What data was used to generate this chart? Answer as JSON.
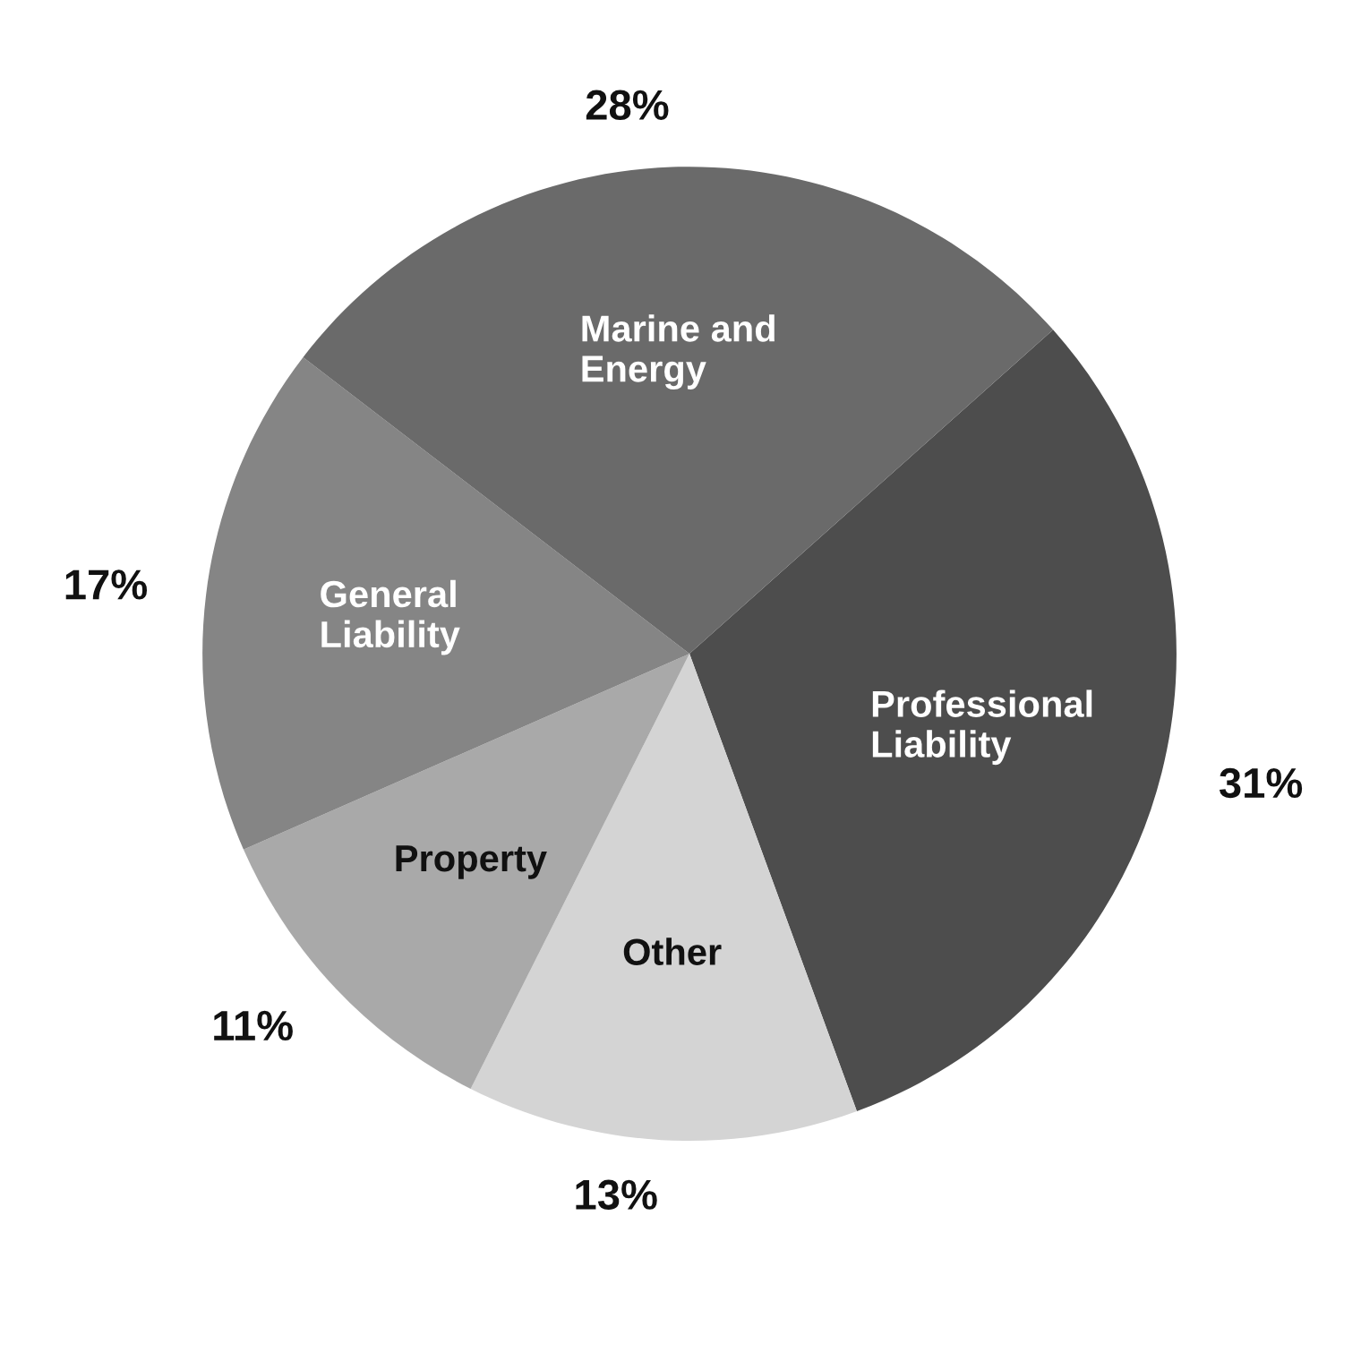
{
  "chart_data": {
    "type": "pie",
    "categories": [
      "Professional\nLiability",
      "Other",
      "Property",
      "General\nLiability",
      "Marine and\nEnergy"
    ],
    "values": [
      31,
      13,
      11,
      17,
      28
    ],
    "value_labels": [
      "31%",
      "13%",
      "11%",
      "17%",
      "28%"
    ],
    "colors": [
      "#4d4d4d",
      "#d4d4d4",
      "#a9a9a9",
      "#858585",
      "#6a6a6a"
    ]
  }
}
